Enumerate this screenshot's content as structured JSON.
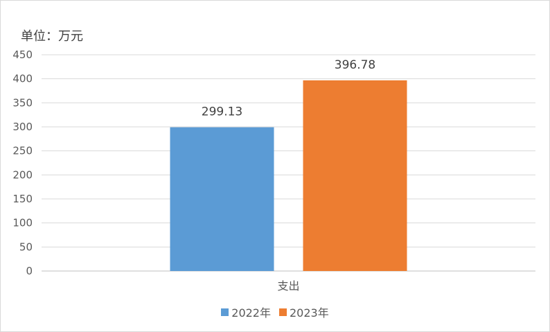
{
  "chart_data": {
    "type": "bar",
    "unit_label": "单位：万元",
    "categories": [
      "支出"
    ],
    "series": [
      {
        "name": "2022年",
        "values": [
          299.13
        ],
        "color": "#5b9bd5"
      },
      {
        "name": "2023年",
        "values": [
          396.78
        ],
        "color": "#ed7d31"
      }
    ],
    "data_labels": [
      "299.13",
      "396.78"
    ],
    "ylim": [
      0,
      450
    ],
    "yticks": [
      0,
      50,
      100,
      150,
      200,
      250,
      300,
      350,
      400,
      450
    ],
    "grid": true,
    "legend_position": "bottom"
  }
}
